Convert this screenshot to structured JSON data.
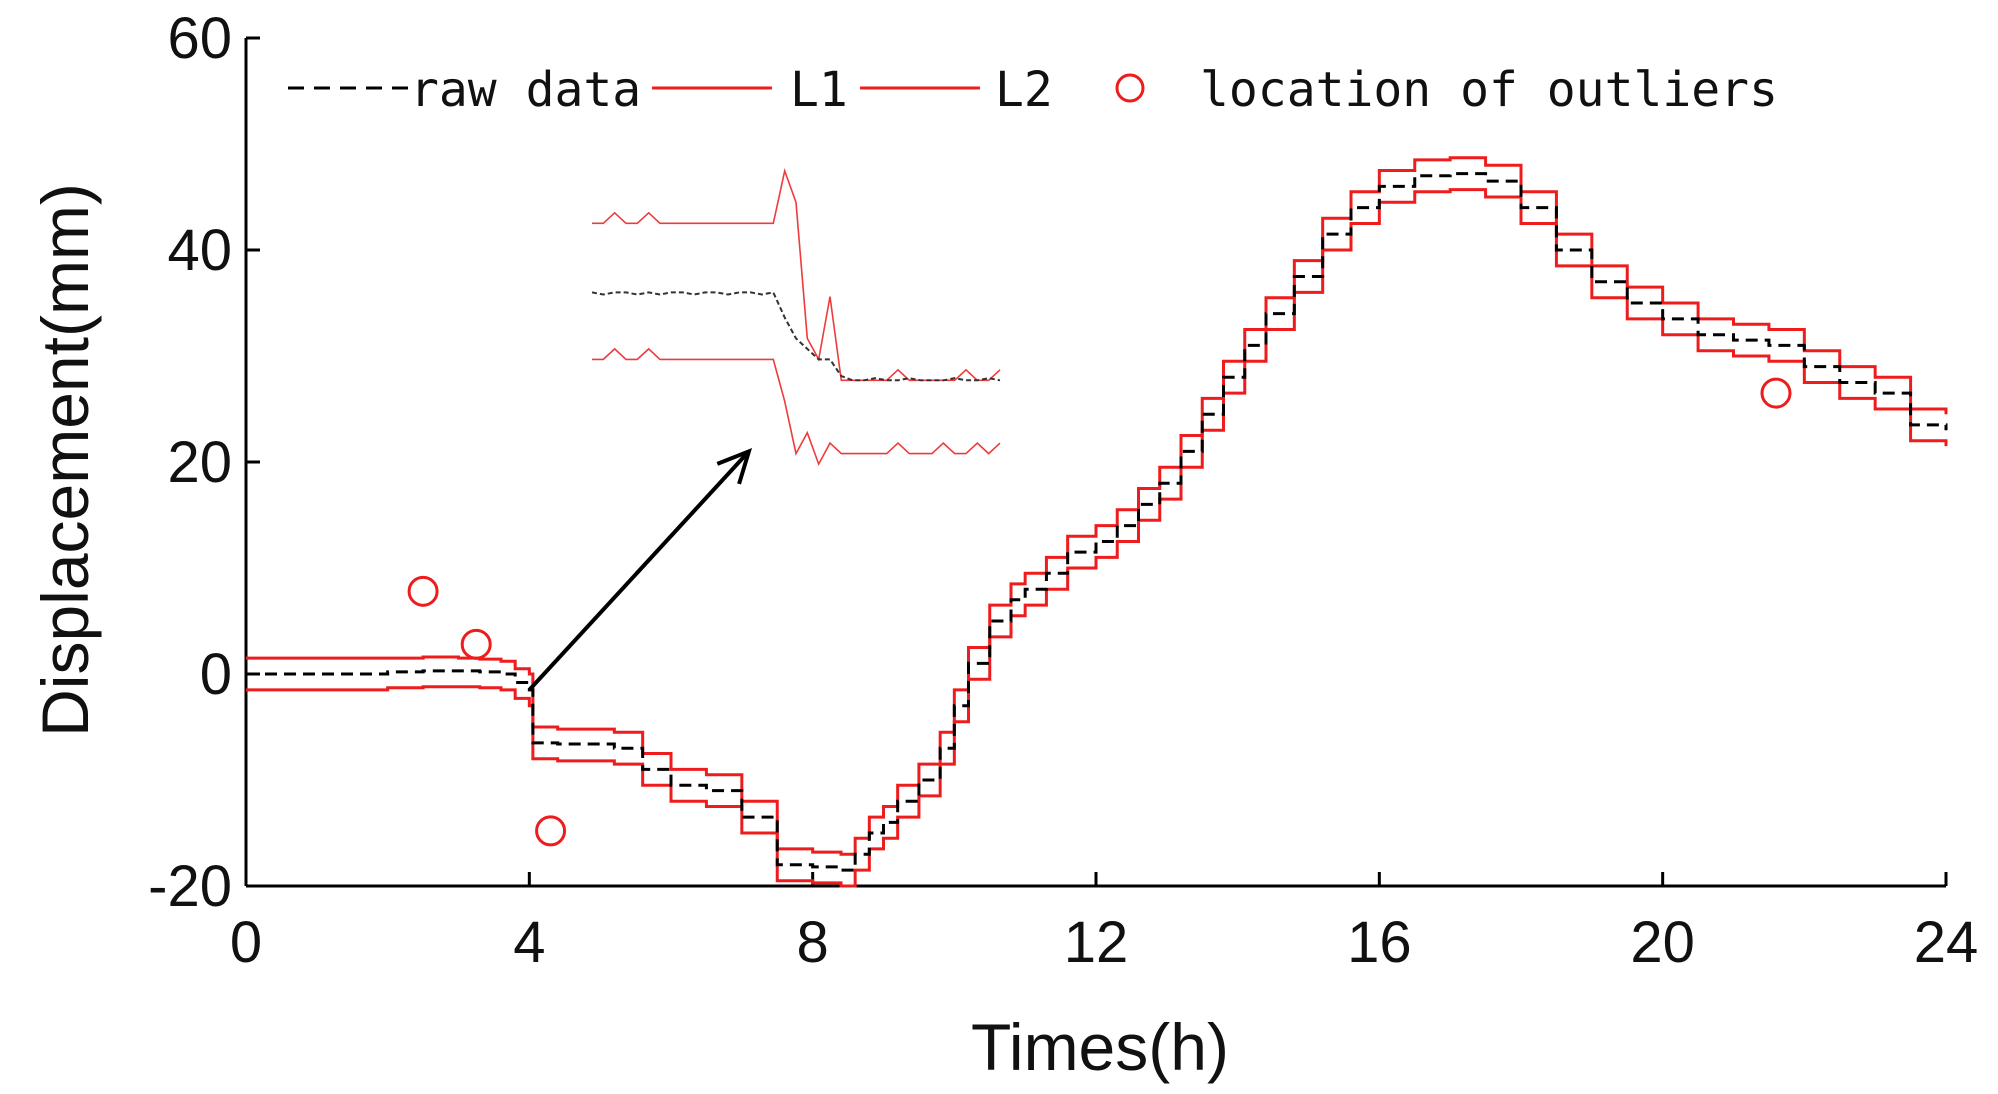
{
  "chart_data": {
    "type": "line",
    "title": "",
    "xlabel": "Times(h)",
    "ylabel": "Displacement(mm)",
    "xlim": [
      0,
      24
    ],
    "ylim": [
      -20,
      60
    ],
    "xticks": [
      0,
      4,
      8,
      12,
      16,
      20,
      24
    ],
    "yticks": [
      -20,
      0,
      20,
      40,
      60
    ],
    "grid": false,
    "legend": {
      "placement": "top",
      "entries": [
        {
          "label": "raw data",
          "style": "dashed",
          "color": "#000000"
        },
        {
          "label": "L1",
          "style": "solid",
          "color": "#ee1c1c"
        },
        {
          "label": "L2",
          "style": "solid",
          "color": "#ee1c1c"
        },
        {
          "label": "location of outliers",
          "style": "circle-marker",
          "color": "#ee1c1c"
        }
      ]
    },
    "series": [
      {
        "name": "raw data",
        "color": "#000000",
        "style": "dashed",
        "x": [
          0,
          1,
          2,
          2.5,
          3,
          3.3,
          3.6,
          3.8,
          4.0,
          4.05,
          4.4,
          5.2,
          5.6,
          6.0,
          6.5,
          7.0,
          7.5,
          8.0,
          8.4,
          8.6,
          8.8,
          9.0,
          9.2,
          9.5,
          9.8,
          10.0,
          10.2,
          10.5,
          10.8,
          11.0,
          11.3,
          11.6,
          12.0,
          12.3,
          12.6,
          12.9,
          13.2,
          13.5,
          13.8,
          14.1,
          14.4,
          14.8,
          15.2,
          15.6,
          16.0,
          16.5,
          17.0,
          17.5,
          18.0,
          18.5,
          19.0,
          19.5,
          20.0,
          20.5,
          21.0,
          21.5,
          22.0,
          22.5,
          23.0,
          23.5,
          24.0
        ],
        "y": [
          0,
          0,
          0.2,
          0.3,
          0.3,
          0.2,
          0,
          -0.8,
          -1.5,
          -6.5,
          -6.6,
          -7.0,
          -9.0,
          -10.5,
          -11.0,
          -13.5,
          -18.0,
          -18.2,
          -18.5,
          -17.0,
          -15.0,
          -14.0,
          -12.0,
          -10.0,
          -7.0,
          -3.0,
          1.0,
          5.0,
          7.0,
          8.0,
          9.5,
          11.5,
          12.5,
          14.0,
          16.0,
          18.0,
          21.0,
          24.5,
          28.0,
          31.0,
          34.0,
          37.5,
          41.5,
          44.0,
          46.0,
          47.0,
          47.2,
          46.5,
          44.0,
          40.0,
          37.0,
          35.0,
          33.5,
          32.0,
          31.5,
          31.0,
          29.0,
          27.5,
          26.5,
          23.5,
          23.0
        ]
      },
      {
        "name": "L1",
        "color": "#ee1c1c",
        "style": "solid",
        "x": [
          0,
          1,
          2,
          2.5,
          3,
          3.3,
          3.6,
          3.8,
          4.0,
          4.05,
          4.4,
          5.2,
          5.6,
          6.0,
          6.5,
          7.0,
          7.5,
          8.0,
          8.4,
          8.6,
          8.8,
          9.0,
          9.2,
          9.5,
          9.8,
          10.0,
          10.2,
          10.5,
          10.8,
          11.0,
          11.3,
          11.6,
          12.0,
          12.3,
          12.6,
          12.9,
          13.2,
          13.5,
          13.8,
          14.1,
          14.4,
          14.8,
          15.2,
          15.6,
          16.0,
          16.5,
          17.0,
          17.5,
          18.0,
          18.5,
          19.0,
          19.5,
          20.0,
          20.5,
          21.0,
          21.5,
          22.0,
          22.5,
          23.0,
          23.5,
          24.0
        ],
        "y": [
          1.5,
          1.5,
          1.5,
          1.6,
          1.5,
          1.4,
          1.2,
          0.5,
          0,
          -5.0,
          -5.2,
          -5.5,
          -7.5,
          -9.0,
          -9.5,
          -12.0,
          -16.5,
          -16.8,
          -17.0,
          -15.5,
          -13.5,
          -12.5,
          -10.5,
          -8.5,
          -5.5,
          -1.5,
          2.5,
          6.5,
          8.5,
          9.5,
          11.0,
          13.0,
          14.0,
          15.5,
          17.5,
          19.5,
          22.5,
          26.0,
          29.5,
          32.5,
          35.5,
          39.0,
          43.0,
          45.5,
          47.5,
          48.5,
          48.7,
          48.0,
          45.5,
          41.5,
          38.5,
          36.5,
          35.0,
          33.5,
          33.0,
          32.5,
          30.5,
          29.0,
          28.0,
          25.0,
          24.5
        ]
      },
      {
        "name": "L2",
        "color": "#ee1c1c",
        "style": "solid",
        "x": [
          0,
          1,
          2,
          2.5,
          3,
          3.3,
          3.6,
          3.8,
          4.0,
          4.05,
          4.4,
          5.2,
          5.6,
          6.0,
          6.5,
          7.0,
          7.5,
          8.0,
          8.4,
          8.6,
          8.8,
          9.0,
          9.2,
          9.5,
          9.8,
          10.0,
          10.2,
          10.5,
          10.8,
          11.0,
          11.3,
          11.6,
          12.0,
          12.3,
          12.6,
          12.9,
          13.2,
          13.5,
          13.8,
          14.1,
          14.4,
          14.8,
          15.2,
          15.6,
          16.0,
          16.5,
          17.0,
          17.5,
          18.0,
          18.5,
          19.0,
          19.5,
          20.0,
          20.5,
          21.0,
          21.5,
          22.0,
          22.5,
          23.0,
          23.5,
          24.0
        ],
        "y": [
          -1.5,
          -1.5,
          -1.3,
          -1.2,
          -1.2,
          -1.3,
          -1.5,
          -2.3,
          -3.0,
          -8.0,
          -8.2,
          -8.5,
          -10.5,
          -12.0,
          -12.5,
          -15.0,
          -19.5,
          -19.7,
          -20.0,
          -18.5,
          -16.5,
          -15.5,
          -13.5,
          -11.5,
          -8.5,
          -4.5,
          -0.5,
          3.5,
          5.5,
          6.5,
          8.0,
          10.0,
          11.0,
          12.5,
          14.5,
          16.5,
          19.5,
          23.0,
          26.5,
          29.5,
          32.5,
          36.0,
          40.0,
          42.5,
          44.5,
          45.5,
          45.7,
          45.0,
          42.5,
          38.5,
          35.5,
          33.5,
          32.0,
          30.5,
          30.0,
          29.5,
          27.5,
          26.0,
          25.0,
          22.0,
          21.5
        ]
      }
    ],
    "outliers": {
      "name": "location of outliers",
      "x": [
        2.5,
        3.25,
        4.3,
        21.6
      ],
      "y": [
        7.8,
        2.8,
        -14.8,
        26.5
      ]
    },
    "annotations": [
      {
        "type": "arrow",
        "from": [
          4.0,
          -1.5
        ],
        "to": [
          7.1,
          21.0
        ],
        "text": ""
      }
    ],
    "inset": {
      "description_of": "zoomed view around t = 4 h step",
      "series": [
        {
          "name": "L1",
          "values": [
            9.5,
            9.5,
            10.0,
            9.5,
            9.5,
            10.0,
            9.5,
            9.5,
            9.5,
            9.5,
            9.5,
            9.5,
            9.5,
            9.5,
            9.5,
            9.5,
            9.5,
            12.0,
            10.5,
            4.0,
            3.0,
            6.0,
            2.0,
            2.0,
            2.0,
            2.0,
            2.0,
            2.5,
            2.0,
            2.0,
            2.0,
            2.0,
            2.0,
            2.5,
            2.0,
            2.0,
            2.5
          ]
        },
        {
          "name": "raw data",
          "values": [
            6.2,
            6.1,
            6.2,
            6.2,
            6.1,
            6.2,
            6.1,
            6.2,
            6.2,
            6.1,
            6.2,
            6.2,
            6.1,
            6.2,
            6.2,
            6.1,
            6.2,
            5.0,
            4.0,
            3.5,
            3.0,
            3.0,
            2.2,
            2.0,
            2.0,
            2.1,
            2.0,
            2.0,
            2.1,
            2.0,
            2.0,
            2.0,
            2.1,
            2.0,
            2.0,
            2.1,
            2.0
          ]
        },
        {
          "name": "L2",
          "values": [
            3.0,
            3.0,
            3.5,
            3.0,
            3.0,
            3.5,
            3.0,
            3.0,
            3.0,
            3.0,
            3.0,
            3.0,
            3.0,
            3.0,
            3.0,
            3.0,
            3.0,
            1.0,
            -1.5,
            -0.5,
            -2.0,
            -1.0,
            -1.5,
            -1.5,
            -1.5,
            -1.5,
            -1.5,
            -1.0,
            -1.5,
            -1.5,
            -1.5,
            -1.0,
            -1.5,
            -1.5,
            -1.0,
            -1.5,
            -1.0
          ]
        }
      ]
    }
  }
}
